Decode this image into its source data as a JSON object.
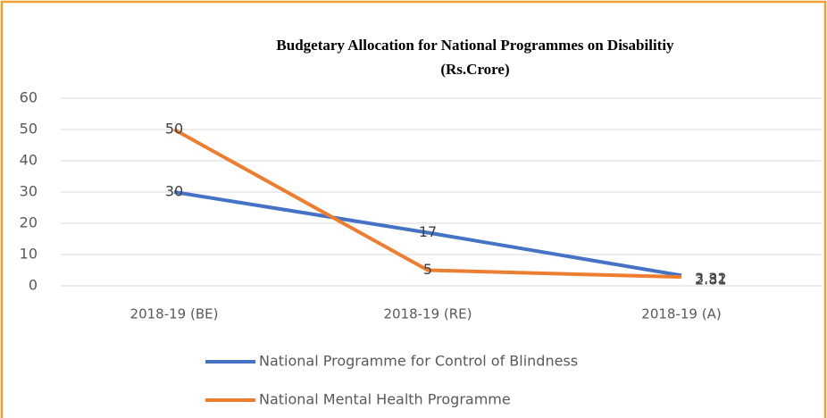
{
  "chart_data": {
    "type": "line",
    "title": "Budgetary Allocation for National Programmes on Disabilitiy",
    "subtitle": "(Rs.Crore)",
    "categories": [
      "2018-19 (BE)",
      "2018-19 (RE)",
      "2018-19 (A)"
    ],
    "series": [
      {
        "name": "National Programme for Control of Blindness",
        "color": "#4472c4",
        "values": [
          30,
          17,
          3.32
        ]
      },
      {
        "name": "National Mental Health Programme",
        "color": "#ed7d31",
        "values": [
          50,
          5,
          2.81
        ]
      }
    ],
    "ylim": [
      0,
      60
    ],
    "yticks": [
      0,
      10,
      20,
      30,
      40,
      50,
      60
    ],
    "grid": true,
    "legend": "bottom"
  }
}
